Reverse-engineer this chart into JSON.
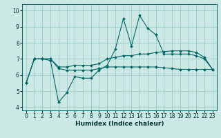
{
  "title": "",
  "xlabel": "Humidex (Indice chaleur)",
  "ylabel": "",
  "background_color": "#cce8e4",
  "grid_color": "#99cccc",
  "line_color": "#006666",
  "xlim": [
    -0.5,
    23.5
  ],
  "ylim": [
    3.8,
    10.4
  ],
  "xticks": [
    0,
    1,
    2,
    3,
    4,
    5,
    6,
    7,
    8,
    9,
    10,
    11,
    12,
    13,
    14,
    15,
    16,
    17,
    18,
    19,
    20,
    21,
    22,
    23
  ],
  "yticks": [
    4,
    5,
    6,
    7,
    8,
    9,
    10
  ],
  "series": [
    [
      5.5,
      7.0,
      7.0,
      6.9,
      4.3,
      4.9,
      5.9,
      5.8,
      5.8,
      6.3,
      6.6,
      7.6,
      9.5,
      7.8,
      9.7,
      8.9,
      8.5,
      7.3,
      7.3,
      7.3,
      7.3,
      7.2,
      7.0,
      6.35
    ],
    [
      5.5,
      7.0,
      7.0,
      7.0,
      6.5,
      6.5,
      6.6,
      6.6,
      6.6,
      6.7,
      7.0,
      7.1,
      7.2,
      7.2,
      7.3,
      7.3,
      7.4,
      7.45,
      7.5,
      7.5,
      7.5,
      7.4,
      7.1,
      6.35
    ],
    [
      5.5,
      7.0,
      7.0,
      7.0,
      6.4,
      6.3,
      6.3,
      6.3,
      6.3,
      6.4,
      6.5,
      6.5,
      6.5,
      6.5,
      6.5,
      6.5,
      6.5,
      6.45,
      6.4,
      6.35,
      6.35,
      6.35,
      6.35,
      6.35
    ]
  ],
  "tick_fontsize": 5.5,
  "xlabel_fontsize": 6.5,
  "marker_size": 2.0
}
